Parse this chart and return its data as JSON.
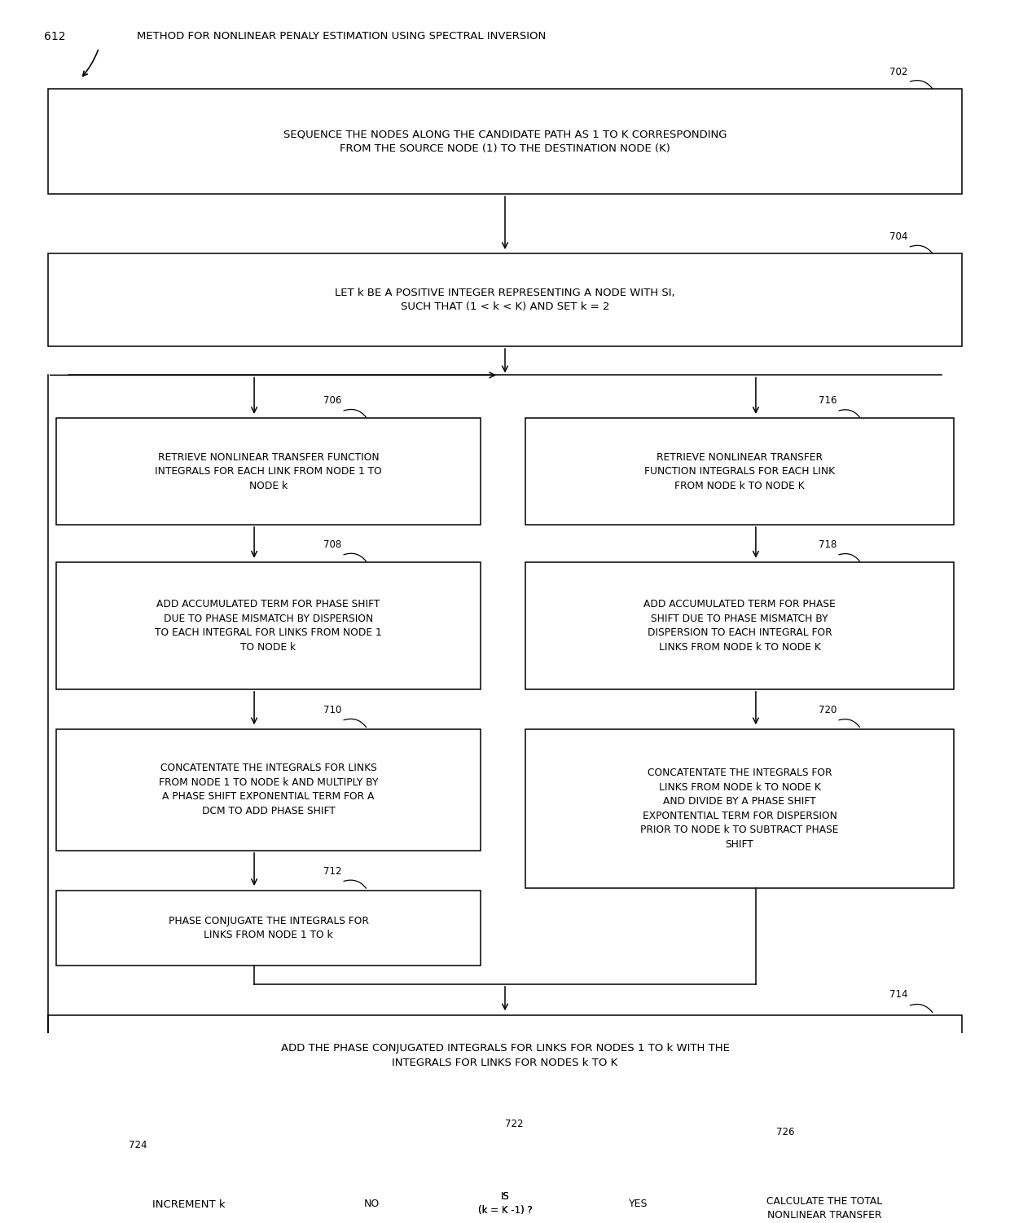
{
  "title": "METHOD FOR NONLINEAR PENALY ESTIMATION USING SPECTRAL INVERSION",
  "diagram_label": "612",
  "background_color": "#ffffff",
  "box_edge_color": "#000000",
  "box_face_color": "#ffffff",
  "text_color": "#000000",
  "arrow_color": "#000000",
  "nodes": {
    "702": "SEQUENCE THE NODES ALONG THE CANDIDATE PATH AS 1 TO K CORRESPONDING\nFROM THE SOURCE NODE (1) TO THE DESTINATION NODE (K)",
    "704": "LET k BE A POSITIVE INTEGER REPRESENTING A NODE WITH SI,\nSUCH THAT (1 < k < K) AND SET k = 2",
    "706": "RETRIEVE NONLINEAR TRANSFER FUNCTION\nINTEGRALS FOR EACH LINK FROM NODE 1 TO\nNODE k",
    "708": "ADD ACCUMULATED TERM FOR PHASE SHIFT\nDUE TO PHASE MISMATCH BY DISPERSION\nTO EACH INTEGRAL FOR LINKS FROM NODE 1\nTO NODE k",
    "710": "CONCATENTATE THE INTEGRALS FOR LINKS\nFROM NODE 1 TO NODE k AND MULTIPLY BY\nA PHASE SHIFT EXPONENTIAL TERM FOR A\nDCM TO ADD PHASE SHIFT",
    "712": "PHASE CONJUGATE THE INTEGRALS FOR\nLINKS FROM NODE 1 TO k",
    "714": "ADD THE PHASE CONJUGATED INTEGRALS FOR LINKS FOR NODES 1 TO k WITH THE\nINTEGRALS FOR LINKS FOR NODES k TO K",
    "716": "RETRIEVE NONLINEAR TRANSFER\nFUNCTION INTEGRALS FOR EACH LINK\nFROM NODE k TO NODE K",
    "718": "ADD ACCUMULATED TERM FOR PHASE\nSHIFT DUE TO PHASE MISMATCH BY\nDISPERSION TO EACH INTEGRAL FOR\nLINKS FROM NODE k TO NODE K",
    "720": "CONCATENTATE THE INTEGRALS FOR\nLINKS FROM NODE k TO NODE K\nAND DIVIDE BY A PHASE SHIFT\nEXPONTENTIAL TERM FOR DISPERSION\nPRIOR TO NODE k TO SUBTRACT PHASE\nSHIFT",
    "722": "IS\n(k = K -1) ?",
    "724": "INCREMENT k",
    "726": "CALCULATE THE TOTAL\nNONLINEAR TRANSFER\nFUNCTION FOR EACH k"
  },
  "figsize": [
    12.4,
    15.01
  ],
  "dpi": 100
}
